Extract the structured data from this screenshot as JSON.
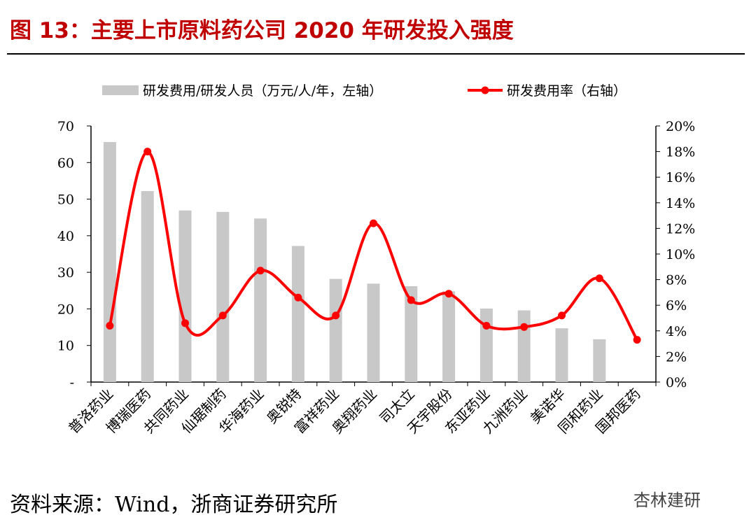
{
  "title": "图 13：主要上市原料药公司 2020 年研发投入强度",
  "source": "资料来源：Wind，浙商证券研究所",
  "watermark": "杏林建研",
  "colors": {
    "bar": "#c8c8c8",
    "line": "#ff0000",
    "title": "#c00000"
  },
  "chart_data": {
    "type": "bar+line",
    "categories": [
      "普洛药业",
      "博瑞医药",
      "共同药业",
      "仙琚制药",
      "华海药业",
      "奥锐特",
      "富祥药业",
      "奥翔药业",
      "司太立",
      "天宇股份",
      "东亚药业",
      "九洲药业",
      "美诺华",
      "同和药业",
      "国邦医药"
    ],
    "series": [
      {
        "name": "研发费用/研发人员（万元/人/年，左轴）",
        "type": "bar",
        "axis": "left",
        "values": [
          65.6,
          52.2,
          46.9,
          46.5,
          44.7,
          37.2,
          28.2,
          26.9,
          26.2,
          24.8,
          20.1,
          19.6,
          14.7,
          11.7,
          null
        ]
      },
      {
        "name": "研发费用率（右轴）",
        "type": "line",
        "axis": "right",
        "values": [
          4.4,
          18.0,
          4.6,
          5.2,
          8.7,
          6.6,
          5.2,
          12.4,
          6.4,
          6.9,
          4.4,
          4.3,
          5.2,
          8.1,
          3.3
        ]
      }
    ],
    "left_axis": {
      "ylim": [
        0,
        70
      ],
      "ticks": [
        "-",
        "10",
        "20",
        "30",
        "40",
        "50",
        "60",
        "70"
      ]
    },
    "right_axis": {
      "ylim": [
        0,
        20
      ],
      "ticks": [
        "0%",
        "2%",
        "4%",
        "6%",
        "8%",
        "10%",
        "12%",
        "14%",
        "16%",
        "18%",
        "20%"
      ]
    },
    "legend_position": "top"
  }
}
